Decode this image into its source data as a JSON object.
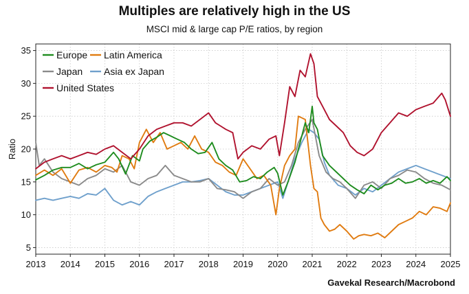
{
  "header": {
    "title": "Multiples are relatively high in the US",
    "subtitle": "MSCI mid & large cap P/E ratios, by region"
  },
  "source": "Gavekal Research/Macrobond",
  "chart_data": {
    "type": "line",
    "ylabel": "Ratio",
    "xlim": [
      2013,
      2025
    ],
    "ylim": [
      4,
      36
    ],
    "x_ticks": [
      "2013",
      "2014",
      "2015",
      "2016",
      "2017",
      "2018",
      "2019",
      "2020",
      "2021",
      "2022",
      "2023",
      "2024",
      "2025"
    ],
    "y_ticks": [
      "5",
      "10",
      "15",
      "20",
      "25",
      "30",
      "35"
    ],
    "grid": true,
    "legend": "top-left",
    "series": [
      {
        "name": "Europe",
        "color": "#1e8c1e",
        "x": [
          2013.0,
          2013.25,
          2013.5,
          2013.75,
          2014.0,
          2014.25,
          2014.5,
          2014.75,
          2015.0,
          2015.25,
          2015.4,
          2015.6,
          2015.8,
          2016.0,
          2016.1,
          2016.3,
          2016.5,
          2016.7,
          2016.9,
          2017.1,
          2017.3,
          2017.5,
          2017.7,
          2017.9,
          2018.1,
          2018.3,
          2018.5,
          2018.7,
          2018.9,
          2019.1,
          2019.3,
          2019.5,
          2019.7,
          2019.9,
          2020.0,
          2020.15,
          2020.3,
          2020.5,
          2020.7,
          2020.8,
          2020.9,
          2021.0,
          2021.05,
          2021.15,
          2021.3,
          2021.5,
          2021.7,
          2021.9,
          2022.1,
          2022.3,
          2022.5,
          2022.7,
          2022.9,
          2023.1,
          2023.3,
          2023.5,
          2023.7,
          2023.9,
          2024.1,
          2024.3,
          2024.5,
          2024.7,
          2024.9,
          2025.0
        ],
        "values": [
          15.3,
          16.0,
          16.8,
          17.2,
          17.2,
          17.8,
          17.0,
          17.6,
          18.0,
          19.5,
          18.5,
          16.2,
          19.0,
          18.2,
          20.0,
          21.2,
          21.8,
          22.5,
          22.0,
          21.5,
          21.0,
          20.0,
          19.3,
          19.5,
          21.0,
          18.5,
          17.5,
          16.8,
          15.0,
          15.2,
          15.8,
          15.5,
          16.5,
          17.2,
          16.3,
          13.0,
          15.0,
          18.0,
          22.0,
          24.0,
          22.5,
          26.5,
          24.0,
          23.0,
          19.0,
          17.5,
          16.5,
          15.5,
          14.5,
          13.8,
          13.2,
          14.5,
          13.8,
          14.5,
          14.8,
          15.5,
          14.8,
          15.0,
          15.5,
          14.8,
          15.2,
          14.8,
          15.8,
          15.2
        ]
      },
      {
        "name": "Latin America",
        "color": "#e07b10",
        "x": [
          2013.0,
          2013.25,
          2013.5,
          2013.75,
          2014.0,
          2014.25,
          2014.5,
          2014.75,
          2015.0,
          2015.2,
          2015.35,
          2015.5,
          2015.7,
          2015.85,
          2016.0,
          2016.2,
          2016.4,
          2016.6,
          2016.8,
          2017.0,
          2017.2,
          2017.4,
          2017.6,
          2017.8,
          2018.0,
          2018.2,
          2018.4,
          2018.6,
          2018.8,
          2019.0,
          2019.2,
          2019.4,
          2019.6,
          2019.8,
          2019.95,
          2020.05,
          2020.2,
          2020.35,
          2020.5,
          2020.6,
          2020.8,
          2020.95,
          2021.05,
          2021.15,
          2021.25,
          2021.35,
          2021.5,
          2021.65,
          2021.8,
          2022.0,
          2022.2,
          2022.35,
          2022.5,
          2022.7,
          2022.9,
          2023.1,
          2023.3,
          2023.5,
          2023.7,
          2023.9,
          2024.1,
          2024.3,
          2024.5,
          2024.7,
          2024.9,
          2025.0
        ],
        "values": [
          16.0,
          16.8,
          16.0,
          17.0,
          14.8,
          16.8,
          17.2,
          16.5,
          17.5,
          17.2,
          16.5,
          19.0,
          18.5,
          17.0,
          21.0,
          23.0,
          21.0,
          22.5,
          20.0,
          20.5,
          21.0,
          20.0,
          22.0,
          20.0,
          19.5,
          18.0,
          17.5,
          16.5,
          16.0,
          18.5,
          17.0,
          15.5,
          16.0,
          14.5,
          10.0,
          14.0,
          17.5,
          19.0,
          20.0,
          25.0,
          24.5,
          17.5,
          14.0,
          13.5,
          9.5,
          8.5,
          7.5,
          7.8,
          8.5,
          7.5,
          6.3,
          6.8,
          7.0,
          6.8,
          7.2,
          6.5,
          7.5,
          8.5,
          9.0,
          9.5,
          10.5,
          10.0,
          11.2,
          11.0,
          10.5,
          11.8
        ]
      },
      {
        "name": "Japan",
        "color": "#8a8a8a",
        "x": [
          2013.0,
          2013.1,
          2013.25,
          2013.5,
          2013.75,
          2014.0,
          2014.25,
          2014.5,
          2014.75,
          2015.0,
          2015.25,
          2015.5,
          2015.75,
          2016.0,
          2016.25,
          2016.5,
          2016.75,
          2017.0,
          2017.25,
          2017.5,
          2017.75,
          2018.0,
          2018.25,
          2018.5,
          2018.75,
          2019.0,
          2019.25,
          2019.5,
          2019.75,
          2020.0,
          2020.2,
          2020.4,
          2020.6,
          2020.8,
          2021.0,
          2021.2,
          2021.4,
          2021.6,
          2021.8,
          2022.0,
          2022.25,
          2022.5,
          2022.75,
          2023.0,
          2023.25,
          2023.5,
          2023.75,
          2024.0,
          2024.25,
          2024.5,
          2024.75,
          2025.0
        ],
        "values": [
          21.0,
          17.5,
          18.5,
          16.5,
          15.5,
          15.0,
          14.5,
          15.5,
          16.0,
          17.0,
          16.5,
          17.5,
          15.0,
          14.5,
          15.5,
          16.0,
          17.5,
          16.0,
          15.5,
          15.0,
          15.0,
          15.5,
          14.0,
          13.8,
          13.5,
          12.5,
          13.5,
          14.0,
          15.5,
          14.5,
          15.0,
          17.5,
          21.0,
          23.0,
          24.5,
          19.0,
          16.5,
          15.5,
          15.0,
          14.0,
          12.5,
          14.5,
          15.0,
          14.0,
          15.5,
          16.0,
          16.8,
          16.5,
          15.5,
          14.8,
          14.5,
          13.8
        ]
      },
      {
        "name": "Asia ex Japan",
        "color": "#6fa0cc",
        "x": [
          2013.0,
          2013.25,
          2013.5,
          2013.75,
          2014.0,
          2014.25,
          2014.5,
          2014.75,
          2015.0,
          2015.25,
          2015.5,
          2015.75,
          2016.0,
          2016.25,
          2016.5,
          2016.75,
          2017.0,
          2017.25,
          2017.5,
          2017.75,
          2018.0,
          2018.25,
          2018.5,
          2018.75,
          2019.0,
          2019.25,
          2019.5,
          2019.75,
          2020.0,
          2020.15,
          2020.3,
          2020.5,
          2020.7,
          2020.9,
          2021.05,
          2021.2,
          2021.35,
          2021.5,
          2021.75,
          2022.0,
          2022.25,
          2022.5,
          2022.75,
          2023.0,
          2023.25,
          2023.5,
          2023.75,
          2024.0,
          2024.25,
          2024.5,
          2024.75,
          2025.0
        ],
        "values": [
          12.2,
          12.5,
          12.2,
          12.5,
          12.8,
          12.5,
          13.2,
          13.0,
          14.0,
          12.2,
          11.5,
          12.0,
          11.5,
          12.8,
          13.5,
          14.0,
          14.5,
          15.0,
          15.0,
          15.2,
          15.5,
          14.5,
          13.5,
          13.0,
          13.0,
          13.5,
          14.0,
          14.5,
          15.0,
          12.5,
          15.0,
          18.5,
          21.0,
          23.0,
          22.5,
          21.5,
          18.0,
          16.0,
          14.5,
          14.0,
          13.0,
          14.0,
          13.5,
          14.5,
          15.5,
          16.5,
          17.0,
          17.5,
          17.0,
          16.5,
          16.0,
          15.5
        ]
      },
      {
        "name": "United States",
        "color": "#b0122e",
        "x": [
          2013.0,
          2013.25,
          2013.5,
          2013.75,
          2014.0,
          2014.25,
          2014.5,
          2014.75,
          2015.0,
          2015.25,
          2015.5,
          2015.75,
          2016.0,
          2016.25,
          2016.5,
          2016.75,
          2017.0,
          2017.25,
          2017.5,
          2017.75,
          2018.0,
          2018.2,
          2018.35,
          2018.5,
          2018.7,
          2018.85,
          2019.0,
          2019.25,
          2019.5,
          2019.75,
          2019.95,
          2020.05,
          2020.2,
          2020.35,
          2020.5,
          2020.65,
          2020.8,
          2020.95,
          2021.05,
          2021.15,
          2021.3,
          2021.5,
          2021.7,
          2021.9,
          2022.1,
          2022.3,
          2022.5,
          2022.75,
          2023.0,
          2023.25,
          2023.5,
          2023.75,
          2024.0,
          2024.25,
          2024.5,
          2024.75,
          2024.85,
          2025.0
        ],
        "values": [
          17.0,
          18.0,
          18.5,
          19.0,
          18.5,
          19.0,
          19.5,
          19.2,
          20.0,
          20.5,
          19.5,
          18.5,
          20.0,
          22.0,
          23.0,
          23.5,
          24.0,
          24.0,
          23.5,
          24.5,
          25.5,
          24.0,
          23.5,
          23.0,
          22.5,
          18.5,
          19.5,
          20.5,
          20.0,
          21.5,
          22.0,
          19.0,
          24.0,
          29.5,
          28.0,
          32.0,
          31.0,
          34.5,
          33.0,
          28.0,
          26.5,
          24.5,
          23.5,
          22.5,
          20.5,
          19.5,
          19.0,
          20.0,
          22.5,
          24.0,
          25.5,
          25.0,
          26.0,
          26.5,
          27.0,
          28.5,
          27.5,
          25.0
        ]
      }
    ]
  }
}
